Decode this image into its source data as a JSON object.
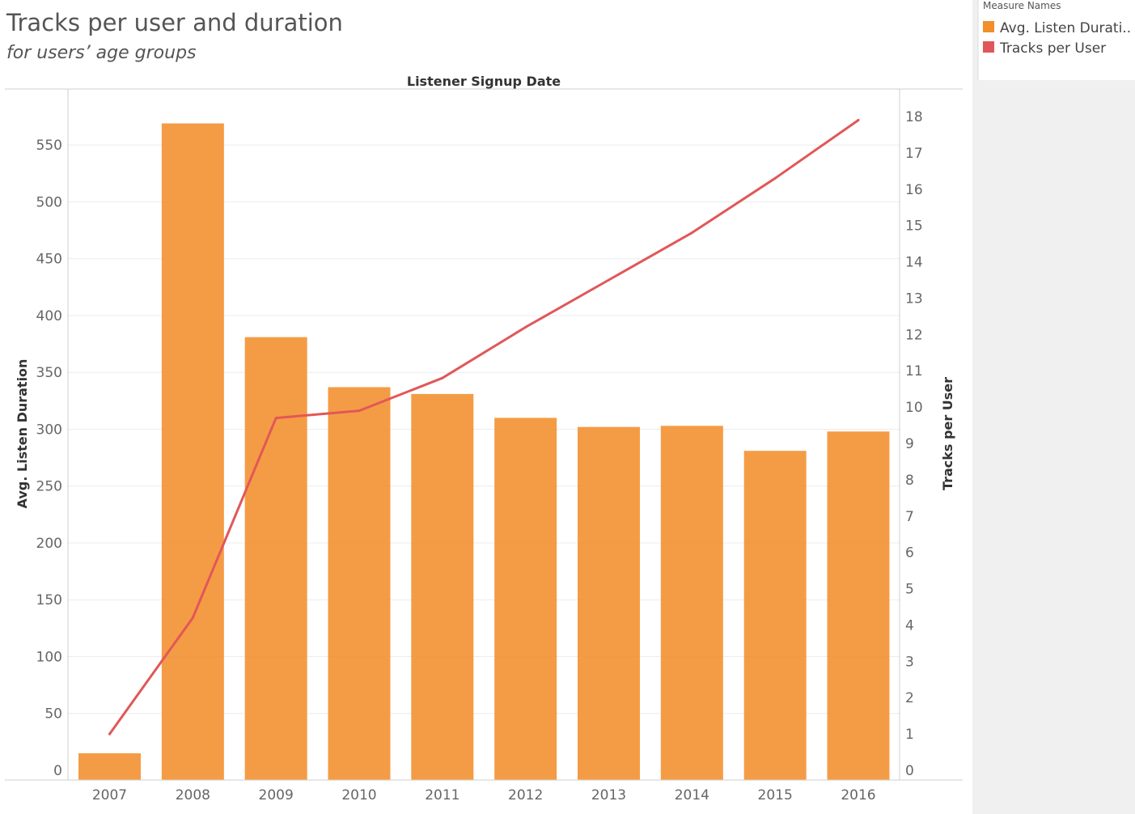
{
  "header": {
    "title": "Tracks per user and duration",
    "subtitle": "for users’ age groups"
  },
  "legend": {
    "title": "Measure Names",
    "items": [
      {
        "label": "Avg. Listen Durati..",
        "color": "#F28E2B",
        "mark": "bar"
      },
      {
        "label": "Tracks per User",
        "color": "#E15759",
        "mark": "line"
      }
    ]
  },
  "chart_data": {
    "type": "bar",
    "combo": "bar-line-dual-axis",
    "xlabel": "Listener Signup Date",
    "categories": [
      "2007",
      "2008",
      "2009",
      "2010",
      "2011",
      "2012",
      "2013",
      "2014",
      "2015",
      "2016"
    ],
    "series": [
      {
        "name": "Avg. Listen Duration",
        "type": "bar",
        "axis": "left",
        "color": "#F28E2B",
        "values": [
          15,
          569,
          381,
          337,
          331,
          310,
          302,
          303,
          281,
          298
        ]
      },
      {
        "name": "Tracks per User",
        "type": "line",
        "axis": "right",
        "color": "#E15759",
        "values": [
          1.0,
          4.2,
          9.7,
          9.9,
          10.8,
          12.2,
          13.5,
          14.8,
          16.3,
          17.9
        ]
      }
    ],
    "y_left": {
      "label": "Avg. Listen Duration",
      "ylim": [
        0,
        590
      ],
      "ticks": [
        0,
        50,
        100,
        150,
        200,
        250,
        300,
        350,
        400,
        450,
        500,
        550
      ]
    },
    "y_right": {
      "label": "Tracks per User",
      "ylim": [
        0,
        18.7
      ],
      "ticks": [
        0,
        1,
        2,
        3,
        4,
        5,
        6,
        7,
        8,
        9,
        10,
        11,
        12,
        13,
        14,
        15,
        16,
        17,
        18
      ]
    },
    "grid": true,
    "legend_position": "top-right"
  }
}
